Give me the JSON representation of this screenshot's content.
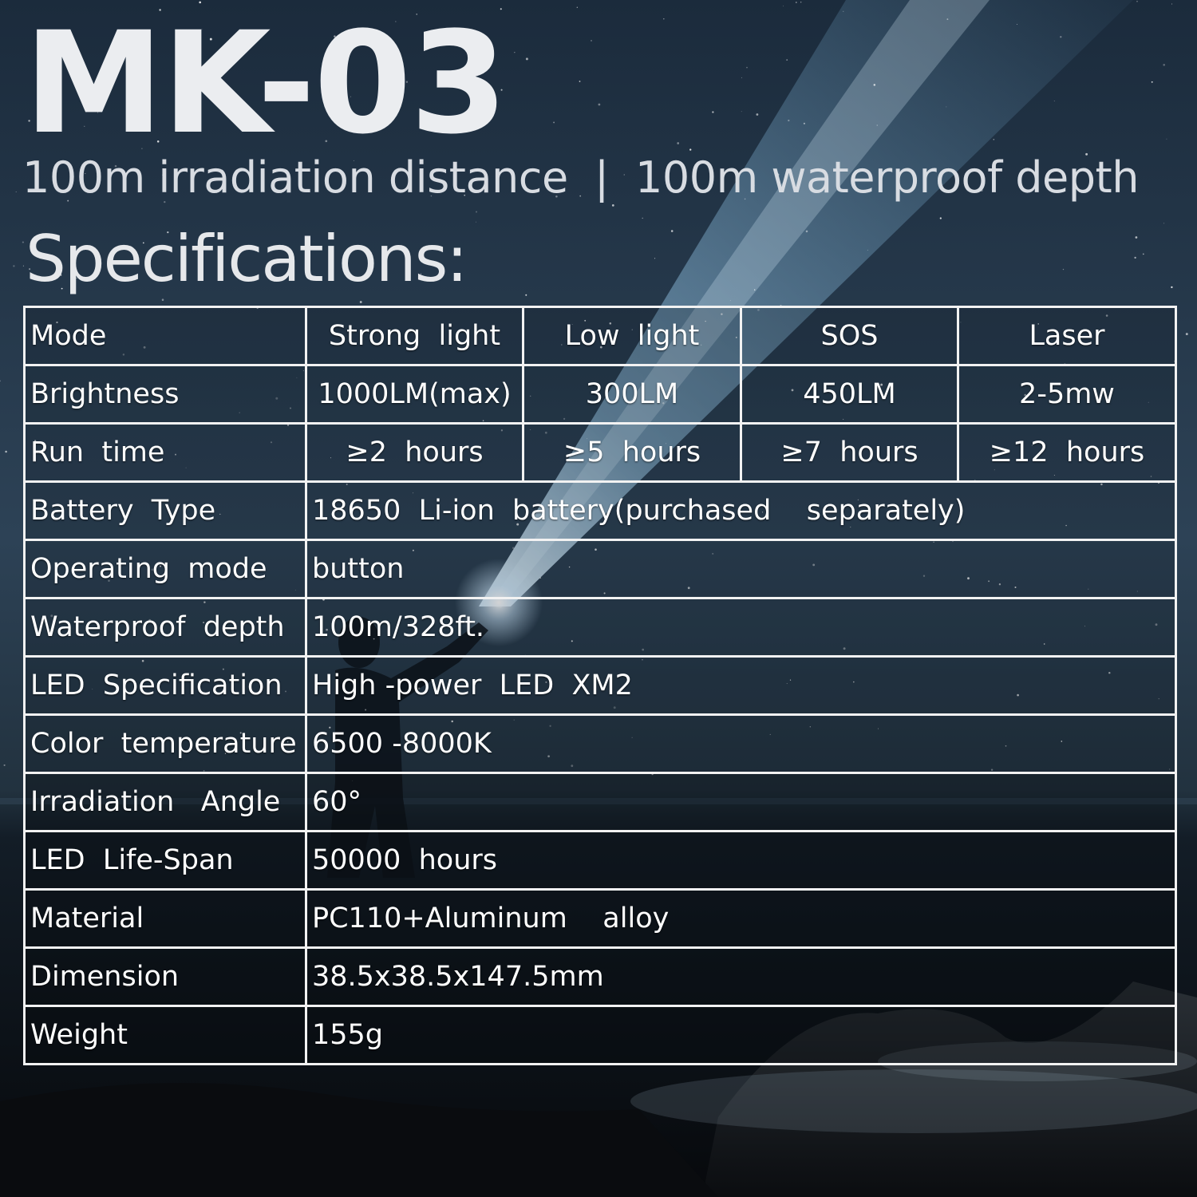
{
  "title": "MK-03",
  "subtitle": "100m irradiation distance  |  100m waterproof depth",
  "heading": "Specifications:",
  "table": {
    "header": {
      "label": "Mode",
      "cols": [
        "Strong  light",
        "Low  light",
        "SOS",
        "Laser"
      ]
    },
    "brightness": {
      "label": "Brightness",
      "values": [
        "1000LM(max)",
        "300LM",
        "450LM",
        "2-5mw"
      ]
    },
    "runtime": {
      "label": "Run  time",
      "values": [
        "≥2  hours",
        "≥5  hours",
        "≥7  hours",
        "≥12  hours"
      ]
    },
    "rows": [
      {
        "label": "Battery  Type",
        "value": "18650  Li-ion  battery(purchased    separately)"
      },
      {
        "label": "Operating  mode",
        "value": "button"
      },
      {
        "label": "Waterproof  depth",
        "value": "100m/328ft."
      },
      {
        "label": "LED  Specification",
        "value": "High -power  LED  XM2"
      },
      {
        "label": "Color  temperature",
        "value": "6500 -8000K"
      },
      {
        "label": "Irradiation   Angle",
        "value": "60°"
      },
      {
        "label": "LED  Life-Span",
        "value": "50000  hours"
      },
      {
        "label": "Material",
        "value": "PC110+Aluminum    alloy"
      },
      {
        "label": "Dimension",
        "value": "38.5x38.5x147.5mm"
      },
      {
        "label": "Weight",
        "value": "155g"
      }
    ]
  },
  "colors": {
    "sky_top": "#1a2a3b",
    "sky_mid": "#2a3e52",
    "sea": "#101a24",
    "beam": "#bfe3ff",
    "border": "#f2f2f2"
  }
}
